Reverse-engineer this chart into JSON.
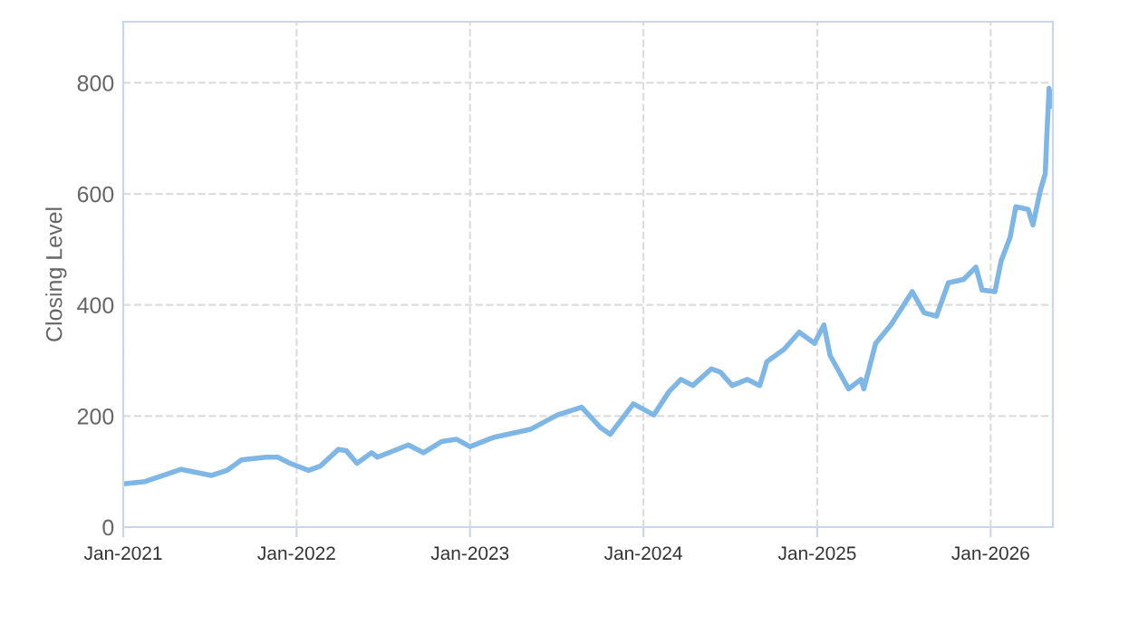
{
  "chart_data": {
    "type": "line",
    "ylabel": "Closing Level",
    "ylim": [
      0,
      910
    ],
    "yticks": [
      0,
      200,
      400,
      600,
      800
    ],
    "xlim": [
      "2021-01-01",
      "2026-05-12"
    ],
    "xticks": [
      {
        "value": "2021-01-01",
        "label": "Jan-2021"
      },
      {
        "value": "2022-01-01",
        "label": "Jan-2022"
      },
      {
        "value": "2023-01-01",
        "label": "Jan-2023"
      },
      {
        "value": "2024-01-01",
        "label": "Jan-2024"
      },
      {
        "value": "2025-01-01",
        "label": "Jan-2025"
      },
      {
        "value": "2026-01-01",
        "label": "Jan-2026"
      }
    ],
    "grid": true,
    "legend": false,
    "marker": "none",
    "line_style": "solid",
    "series": [
      {
        "color": "#7eb6e6",
        "x": [
          "2021-01-02",
          "2021-02-16",
          "2021-05-03",
          "2021-07-06",
          "2021-08-07",
          "2021-09-07",
          "2021-10-29",
          "2021-11-22",
          "2021-12-18",
          "2022-01-26",
          "2022-02-20",
          "2022-03-30",
          "2022-04-15",
          "2022-05-08",
          "2022-06-08",
          "2022-06-20",
          "2022-07-23",
          "2022-08-24",
          "2022-09-25",
          "2022-11-02",
          "2022-12-04",
          "2023-01-01",
          "2023-02-21",
          "2023-05-08",
          "2023-07-04",
          "2023-08-24",
          "2023-10-02",
          "2023-10-23",
          "2023-12-11",
          "2024-01-23",
          "2024-02-24",
          "2024-03-20",
          "2024-04-14",
          "2024-05-23",
          "2024-06-11",
          "2024-07-06",
          "2024-08-07",
          "2024-09-02",
          "2024-09-17",
          "2024-10-23",
          "2024-11-24",
          "2024-12-26",
          "2025-01-15",
          "2025-01-28",
          "2025-03-08",
          "2025-04-03",
          "2025-04-09",
          "2025-05-04",
          "2025-06-05",
          "2025-07-20",
          "2025-08-14",
          "2025-09-09",
          "2025-10-04",
          "2025-11-05",
          "2025-12-01",
          "2025-12-14",
          "2026-01-10",
          "2026-01-23",
          "2026-02-11",
          "2026-02-23",
          "2026-03-21",
          "2026-03-31",
          "2026-04-15",
          "2026-04-26",
          "2026-04-29",
          "2026-05-04",
          "2026-05-10"
        ],
        "values": [
          78,
          82,
          104,
          93,
          102,
          121,
          126,
          126,
          115,
          102,
          110,
          140,
          138,
          115,
          134,
          126,
          137,
          148,
          134,
          154,
          158,
          145,
          162,
          176,
          202,
          216,
          180,
          167,
          222,
          202,
          244,
          266,
          255,
          285,
          279,
          255,
          266,
          255,
          298,
          320,
          351,
          331,
          364,
          309,
          249,
          266,
          249,
          331,
          364,
          424,
          386,
          380,
          440,
          446,
          468,
          427,
          424,
          479,
          522,
          577,
          572,
          544,
          604,
          637,
          700,
          790,
          758
        ]
      }
    ]
  }
}
